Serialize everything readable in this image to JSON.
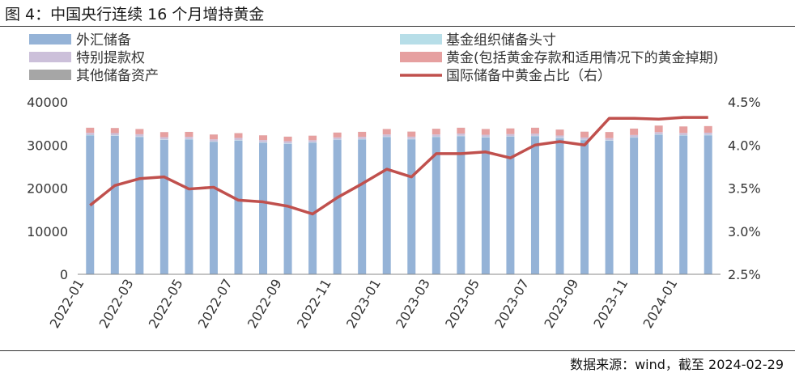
{
  "figure": {
    "title": "图 4：中国央行连续 16 个月增持黄金",
    "source": "数据来源：wind，截至 2024-02-29"
  },
  "colors": {
    "fx": "#95b3d7",
    "imf": "#b7dee8",
    "sdr": "#ccc0da",
    "gold": "#e6a0a0",
    "other": "#a6a6a6",
    "line": "#c0504d"
  },
  "chart_data": {
    "type": "bar",
    "stacked": true,
    "categories": [
      "2022-01",
      "2022-02",
      "2022-03",
      "2022-04",
      "2022-05",
      "2022-06",
      "2022-07",
      "2022-08",
      "2022-09",
      "2022-10",
      "2022-11",
      "2022-12",
      "2023-01",
      "2023-02",
      "2023-03",
      "2023-04",
      "2023-05",
      "2023-06",
      "2023-07",
      "2023-08",
      "2023-09",
      "2023-10",
      "2023-11",
      "2023-12",
      "2024-01",
      "2024-02"
    ],
    "x_tick_labels": [
      "2022-01",
      "2022-03",
      "2022-05",
      "2022-07",
      "2022-09",
      "2022-11",
      "2023-01",
      "2023-03",
      "2023-05",
      "2023-07",
      "2023-09",
      "2023-11",
      "2024-01"
    ],
    "series": [
      {
        "name": "外汇储备",
        "key": "fx",
        "axis": "left",
        "values": [
          32200,
          32140,
          31880,
          31200,
          31280,
          30710,
          31040,
          30550,
          30290,
          30520,
          31170,
          31280,
          31850,
          31330,
          31840,
          32050,
          31770,
          31930,
          32040,
          31600,
          31150,
          31010,
          31720,
          32380,
          32190,
          32260
        ]
      },
      {
        "name": "基金组织储备头寸",
        "key": "imf",
        "axis": "left",
        "values": [
          100,
          100,
          100,
          100,
          100,
          100,
          100,
          100,
          100,
          100,
          100,
          100,
          100,
          100,
          100,
          100,
          100,
          100,
          100,
          100,
          100,
          100,
          100,
          100,
          100,
          100
        ]
      },
      {
        "name": "特别提款权",
        "key": "sdr",
        "axis": "left",
        "values": [
          530,
          530,
          530,
          520,
          520,
          510,
          510,
          500,
          490,
          490,
          500,
          510,
          510,
          510,
          520,
          520,
          510,
          510,
          510,
          510,
          500,
          500,
          510,
          510,
          510,
          510
        ]
      },
      {
        "name": "黄金(包括黄金存款和适用情况下的黄金掉期)",
        "key": "gold",
        "axis": "left",
        "values": [
          1180,
          1180,
          1200,
          1180,
          1150,
          1120,
          1110,
          1100,
          1060,
          1060,
          1120,
          1170,
          1250,
          1180,
          1310,
          1340,
          1330,
          1310,
          1360,
          1380,
          1350,
          1410,
          1480,
          1520,
          1510,
          1520
        ]
      },
      {
        "name": "其他储备资产",
        "key": "other",
        "axis": "left",
        "values": [
          10,
          10,
          10,
          10,
          10,
          10,
          10,
          10,
          10,
          10,
          10,
          10,
          10,
          10,
          10,
          10,
          10,
          10,
          10,
          10,
          10,
          10,
          10,
          10,
          10,
          10
        ]
      },
      {
        "name": "国际储备中黄金占比（右）",
        "key": "line",
        "axis": "right",
        "type": "line",
        "values": [
          3.3,
          3.53,
          3.61,
          3.63,
          3.49,
          3.51,
          3.36,
          3.34,
          3.29,
          3.2,
          3.39,
          3.55,
          3.72,
          3.63,
          3.9,
          3.9,
          3.92,
          3.85,
          4.0,
          4.04,
          4.0,
          4.31,
          4.31,
          4.3,
          4.32,
          4.32
        ]
      }
    ],
    "y_left": {
      "min": 0,
      "max": 40000,
      "ticks": [
        0,
        10000,
        20000,
        30000,
        40000
      ],
      "tick_labels": [
        "0",
        "10000",
        "20000",
        "30000",
        "40000"
      ]
    },
    "y_right": {
      "min": 2.5,
      "max": 4.5,
      "ticks": [
        2.5,
        3.0,
        3.5,
        4.0,
        4.5
      ],
      "tick_labels": [
        "2.5%",
        "3.0%",
        "3.5%",
        "4.0%",
        "4.5%"
      ]
    },
    "grid": false,
    "legend_position": "top"
  }
}
